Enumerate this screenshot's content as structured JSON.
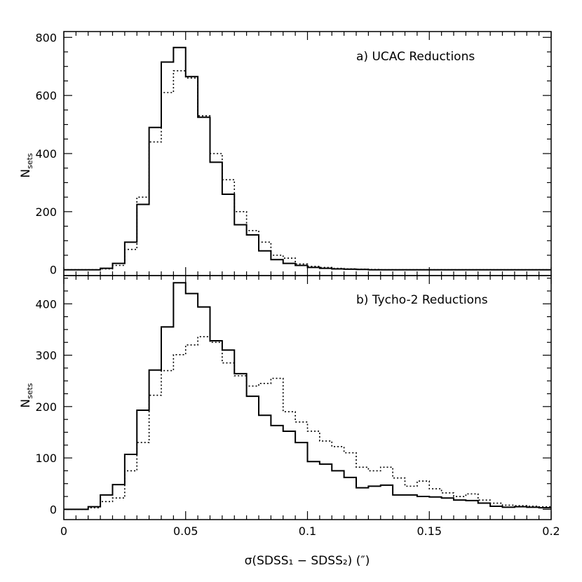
{
  "chart_data": [
    {
      "type": "histogram",
      "title": "a) UCAC Reductions",
      "xlabel": "σ(SDSS₁ − SDSS₂) (″)",
      "ylabel_main": "N",
      "ylabel_sub": "sets",
      "xlim": [
        0,
        0.2
      ],
      "ylim": [
        -20,
        820
      ],
      "yticks": [
        0,
        200,
        400,
        600,
        800
      ],
      "ytick_labels": [
        "0",
        "200",
        "400",
        "600",
        "800"
      ],
      "bin_width": 0.005,
      "series": [
        {
          "name": "solid",
          "style": "solid",
          "values": [
            0,
            0,
            0,
            5,
            22,
            95,
            225,
            490,
            715,
            765,
            665,
            525,
            370,
            260,
            155,
            120,
            65,
            35,
            22,
            15,
            8,
            5,
            3,
            2,
            1,
            0,
            0,
            0,
            0,
            0,
            0,
            0,
            0,
            0,
            0,
            0,
            0,
            0,
            0,
            0
          ]
        },
        {
          "name": "dotted",
          "style": "dotted",
          "values": [
            0,
            0,
            0,
            3,
            15,
            70,
            250,
            440,
            610,
            685,
            660,
            530,
            400,
            310,
            200,
            135,
            95,
            50,
            40,
            20,
            12,
            8,
            5,
            3,
            2,
            1,
            0,
            0,
            0,
            0,
            0,
            0,
            0,
            0,
            0,
            0,
            0,
            0,
            0,
            0
          ]
        }
      ]
    },
    {
      "type": "histogram",
      "title": "b) Tycho-2 Reductions",
      "xlabel": "σ(SDSS₁ − SDSS₂) (″)",
      "ylabel_main": "N",
      "ylabel_sub": "sets",
      "xlim": [
        0,
        0.2
      ],
      "ylim": [
        -20,
        455
      ],
      "yticks": [
        0,
        100,
        200,
        300,
        400
      ],
      "ytick_labels": [
        "0",
        "100",
        "200",
        "300",
        "400"
      ],
      "xticks": [
        0,
        0.05,
        0.1,
        0.15,
        0.2
      ],
      "xtick_labels": [
        "0",
        "0.05",
        "0.1",
        "0.15",
        "0.2"
      ],
      "bin_width": 0.005,
      "series": [
        {
          "name": "solid",
          "style": "solid",
          "values": [
            0,
            0,
            5,
            28,
            48,
            107,
            193,
            271,
            355,
            441,
            420,
            394,
            328,
            310,
            264,
            220,
            183,
            163,
            152,
            130,
            93,
            88,
            75,
            62,
            42,
            45,
            47,
            28,
            28,
            25,
            24,
            22,
            18,
            17,
            12,
            6,
            4,
            5,
            4,
            3
          ]
        },
        {
          "name": "dotted",
          "style": "dotted",
          "values": [
            0,
            0,
            3,
            15,
            22,
            75,
            130,
            222,
            270,
            301,
            320,
            336,
            325,
            285,
            260,
            240,
            245,
            255,
            190,
            170,
            152,
            133,
            122,
            110,
            82,
            75,
            82,
            61,
            45,
            55,
            40,
            32,
            25,
            30,
            18,
            12,
            8,
            7,
            6,
            5
          ]
        }
      ]
    }
  ]
}
